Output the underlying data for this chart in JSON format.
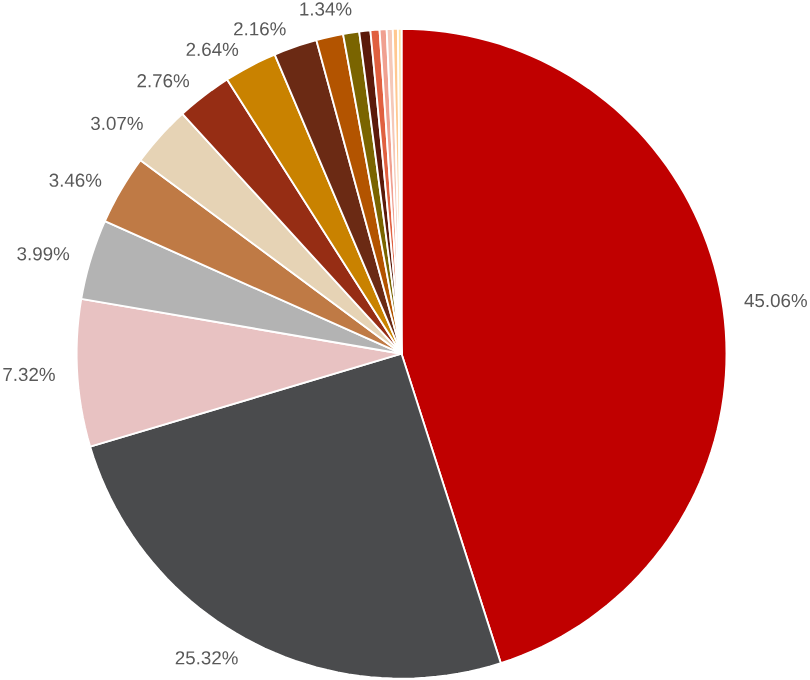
{
  "chart_data": {
    "type": "pie",
    "categories": [
      null,
      null,
      null,
      null,
      null,
      null,
      null,
      null,
      null,
      null,
      null,
      null,
      null,
      null,
      null,
      null,
      null
    ],
    "values": [
      45.06,
      25.32,
      7.32,
      3.99,
      3.46,
      3.07,
      2.76,
      2.64,
      2.16,
      1.34,
      0.8,
      0.55,
      0.45,
      0.35,
      0.3,
      0.25,
      0.18
    ],
    "value_labels": [
      "45.06%",
      "25.32%",
      "7.32%",
      "3.99%",
      "3.46%",
      "3.07%",
      "2.76%",
      "2.64%",
      "2.16%",
      "1.34%",
      null,
      null,
      null,
      null,
      null,
      null,
      null
    ],
    "colors": [
      "#c00000",
      "#4a4b4d",
      "#e8c2c2",
      "#b3b3b3",
      "#bf7a45",
      "#e6d3b5",
      "#962d14",
      "#c98200",
      "#6b2a14",
      "#b35400",
      "#7a6400",
      "#5c1a0a",
      "#e06040",
      "#f0a090",
      "#f5c8b8",
      "#ffc890",
      "#ffe0a0"
    ]
  }
}
